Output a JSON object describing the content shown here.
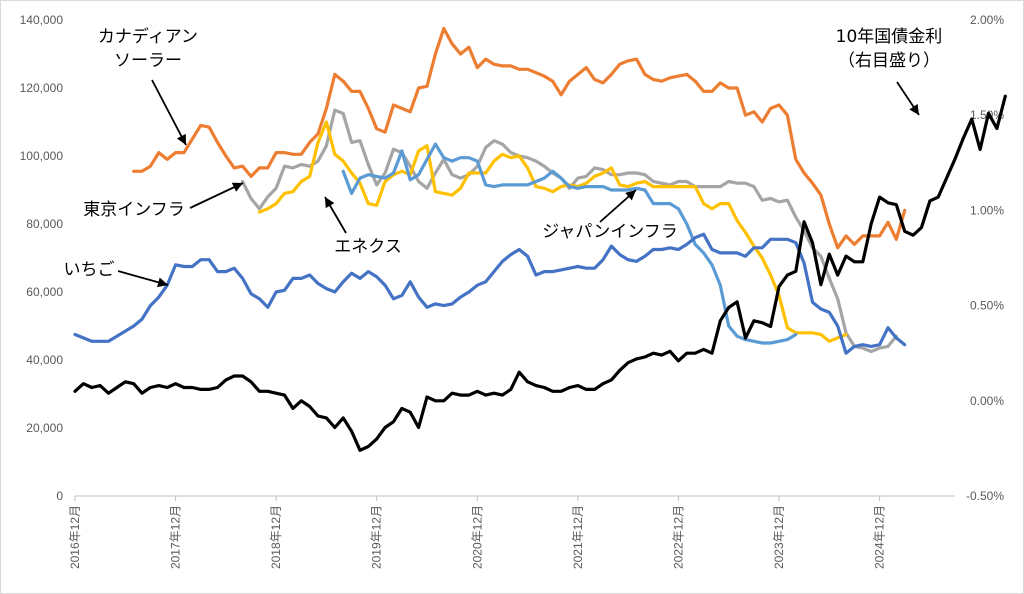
{
  "chart_data": {
    "type": "line",
    "title": "",
    "xlabel": "",
    "ylabel": "",
    "ylim": [
      0,
      140000
    ],
    "y2lim": [
      -0.5,
      2.0
    ],
    "grid": false,
    "legend": "none",
    "y_ticks": [
      "0",
      "20,000",
      "40,000",
      "60,000",
      "80,000",
      "100,000",
      "120,000",
      "140,000"
    ],
    "y2_ticks": [
      "-0.50%",
      "0.00%",
      "0.50%",
      "1.00%",
      "1.50%",
      "2.00%"
    ],
    "x_ticks": [
      "2016年12月",
      "2017年12月",
      "2018年12月",
      "2019年12月",
      "2020年12月",
      "2021年12月",
      "2022年12月",
      "2023年12月",
      "2024年12月"
    ],
    "x_start_index": 0,
    "x_end_index": 105,
    "series": [
      {
        "name": "カナディアン\nソーラー",
        "axis": "left",
        "color": "#ED7D31",
        "start_index": 7,
        "values": [
          95500,
          95500,
          97000,
          101000,
          99000,
          101000,
          101000,
          105000,
          109000,
          108500,
          104000,
          100000,
          96500,
          97000,
          94000,
          96500,
          96500,
          101000,
          101000,
          100500,
          100500,
          104000,
          106500,
          114000,
          124000,
          122000,
          119000,
          119000,
          114000,
          108000,
          107000,
          115000,
          114000,
          113000,
          120000,
          120500,
          130000,
          137500,
          133000,
          130000,
          132000,
          126000,
          128500,
          127000,
          126500,
          126500,
          125500,
          125500,
          124500,
          123500,
          122000,
          118000,
          122000,
          124000,
          126000,
          122500,
          121500,
          124000,
          127000,
          128000,
          128500,
          124000,
          122500,
          122000,
          123000,
          123500,
          124000,
          122000,
          119000,
          119000,
          121500,
          120000,
          120000,
          112000,
          113000,
          110000,
          114000,
          115000,
          112000,
          99000,
          95000,
          92000,
          88500,
          80000,
          73000,
          76500,
          74000,
          76500,
          76500,
          76500,
          80500,
          75500,
          84000
        ]
      },
      {
        "name": "東京インフラ",
        "axis": "left",
        "color": "#A5A5A5",
        "start_index": 20,
        "values": [
          92500,
          87500,
          84500,
          88000,
          90500,
          97000,
          96500,
          97500,
          97000,
          98500,
          103000,
          113500,
          112500,
          104000,
          104500,
          97500,
          91500,
          95000,
          102000,
          101000,
          97000,
          92500,
          90500,
          95000,
          99000,
          94500,
          93500,
          94500,
          97000,
          102500,
          104500,
          103500,
          101000,
          100000,
          99500,
          98500,
          97000,
          95000,
          93500,
          90500,
          93500,
          94000,
          96500,
          96000,
          94500,
          94500,
          95000,
          95000,
          94500,
          92500,
          92000,
          91500,
          92500,
          92500,
          91000,
          91000,
          91000,
          91000,
          92500,
          92000,
          92000,
          91000,
          87000,
          87500,
          86500,
          87000,
          82000,
          78000,
          73000,
          70500,
          64000,
          58000,
          48000,
          44000,
          43500,
          42500,
          43500,
          44000,
          47000
        ]
      },
      {
        "name": "エネクス",
        "axis": "left",
        "color": "#FFC000",
        "start_index": 22,
        "values": [
          83500,
          84500,
          86000,
          89000,
          89500,
          92500,
          94000,
          104000,
          110000,
          100500,
          98500,
          95000,
          92000,
          86000,
          85500,
          92500,
          94500,
          95500,
          94500,
          101500,
          103000,
          89500,
          89000,
          88500,
          90500,
          95000,
          95000,
          95000,
          98500,
          100500,
          99500,
          100000,
          96500,
          91000,
          90500,
          89500,
          91000,
          91500,
          91000,
          92000,
          94000,
          95000,
          96500,
          91500,
          91000,
          92000,
          92500,
          91000,
          91000,
          91000,
          91000,
          91000,
          91000,
          86000,
          84500,
          86000,
          86000,
          81000,
          77500,
          73500,
          70000,
          65000,
          59000,
          49500,
          48000,
          48000,
          48000,
          47500,
          45500,
          46500,
          47500
        ]
      },
      {
        "name": "ジャパンインフラ",
        "axis": "left",
        "color": "#5B9BD5",
        "start_index": 32,
        "values": [
          95500,
          89000,
          93500,
          94500,
          94000,
          93500,
          95000,
          101500,
          93000,
          94500,
          99000,
          103500,
          99500,
          98500,
          99500,
          99500,
          98500,
          91500,
          91000,
          91500,
          91500,
          91500,
          91500,
          92500,
          93500,
          95500,
          93500,
          91000,
          90500,
          91000,
          91000,
          91000,
          90000,
          90000,
          90000,
          90500,
          90000,
          86000,
          86000,
          86000,
          84500,
          80000,
          74000,
          71500,
          68000,
          62000,
          50000,
          47000,
          46000,
          45500,
          45000,
          45000,
          45500,
          46000,
          47500
        ]
      },
      {
        "name": "いちご",
        "axis": "left",
        "color": "#4472C4",
        "start_index": 0,
        "values": [
          47500,
          46500,
          45500,
          45500,
          45500,
          47000,
          48500,
          50000,
          52000,
          56000,
          58500,
          62000,
          68000,
          67500,
          67500,
          69500,
          69500,
          66000,
          66000,
          67000,
          64000,
          59500,
          58000,
          55500,
          60000,
          60500,
          64000,
          64000,
          65000,
          62500,
          61000,
          60000,
          63000,
          65500,
          64000,
          66000,
          64500,
          62000,
          58000,
          59000,
          63000,
          58500,
          55500,
          56500,
          56000,
          56500,
          58500,
          60000,
          62000,
          63000,
          66000,
          69000,
          71000,
          72500,
          70500,
          65000,
          66000,
          66000,
          66500,
          67000,
          67500,
          67000,
          67000,
          69500,
          73500,
          71000,
          69500,
          69000,
          70500,
          72500,
          72500,
          73000,
          72500,
          74000,
          76000,
          77000,
          72500,
          71500,
          71500,
          71500,
          70500,
          73000,
          73000,
          75500,
          75500,
          75500,
          74500,
          68500,
          57000,
          55000,
          54000,
          50000,
          42000,
          44000,
          44500,
          44000,
          44500,
          49500,
          46500,
          44500
        ]
      },
      {
        "name": "10年国債金利\n（右目盛り）",
        "axis": "right",
        "color": "#000000",
        "start_index": 0,
        "values": [
          0.05,
          0.09,
          0.07,
          0.08,
          0.04,
          0.07,
          0.1,
          0.09,
          0.04,
          0.07,
          0.08,
          0.07,
          0.09,
          0.07,
          0.07,
          0.06,
          0.06,
          0.07,
          0.11,
          0.13,
          0.13,
          0.1,
          0.05,
          0.05,
          0.04,
          0.03,
          -0.04,
          0.0,
          -0.03,
          -0.08,
          -0.09,
          -0.14,
          -0.09,
          -0.16,
          -0.26,
          -0.24,
          -0.2,
          -0.14,
          -0.11,
          -0.04,
          -0.06,
          -0.14,
          0.02,
          0.0,
          0.0,
          0.04,
          0.03,
          0.03,
          0.05,
          0.03,
          0.04,
          0.03,
          0.06,
          0.15,
          0.1,
          0.08,
          0.07,
          0.05,
          0.05,
          0.07,
          0.08,
          0.06,
          0.06,
          0.09,
          0.11,
          0.16,
          0.2,
          0.22,
          0.23,
          0.25,
          0.24,
          0.26,
          0.21,
          0.25,
          0.25,
          0.27,
          0.25,
          0.42,
          0.49,
          0.52,
          0.33,
          0.42,
          0.41,
          0.39,
          0.6,
          0.66,
          0.68,
          0.94,
          0.83,
          0.61,
          0.77,
          0.66,
          0.76,
          0.73,
          0.73,
          0.93,
          1.07,
          1.04,
          1.03,
          0.89,
          0.87,
          0.91,
          1.05,
          1.07,
          1.17,
          1.27,
          1.38,
          1.48,
          1.32,
          1.51,
          1.43,
          1.6
        ]
      }
    ],
    "annotations": [
      {
        "text": "カナディアン\nソーラー",
        "series": "カナディアン\nソーラー"
      },
      {
        "text": "東京インフラ",
        "series": "東京インフラ"
      },
      {
        "text": "エネクス",
        "series": "エネクス"
      },
      {
        "text": "ジャパンインフラ",
        "series": "ジャパンインフラ"
      },
      {
        "text": "いちご",
        "series": "いちご"
      },
      {
        "text": "10年国債金利\n（右目盛り）",
        "series": "10年国債金利\n（右目盛り）"
      }
    ]
  }
}
